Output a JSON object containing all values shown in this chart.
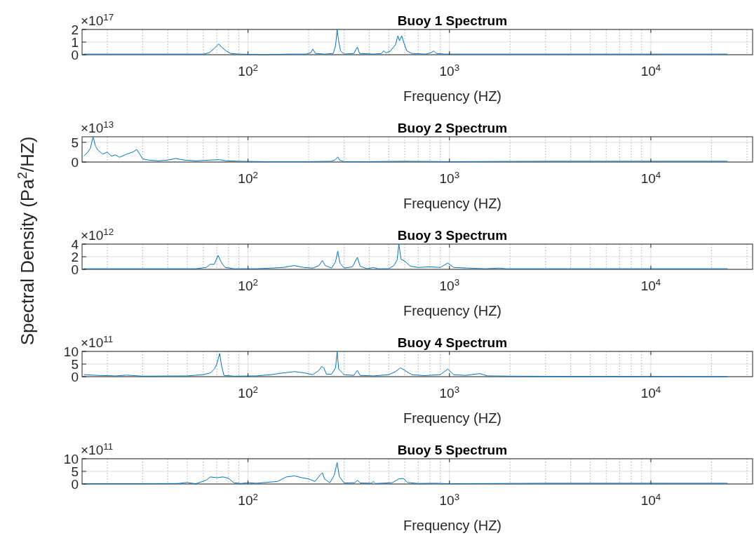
{
  "chart_data": [
    {
      "type": "line",
      "title": "Buoy 1 Spectrum",
      "xlabel": "Frequency (HZ)",
      "log": "x",
      "grid": true,
      "xlim": [
        15,
        32000
      ],
      "xticks": [
        {
          "value": 100,
          "label": "10$^{2}$"
        },
        {
          "value": 1000,
          "label": "10$^{3}$"
        },
        {
          "value": 10000,
          "label": "10$^{4}$"
        }
      ],
      "ylim": [
        0,
        2
      ],
      "yticks": [
        0,
        1,
        2
      ],
      "annotations": [
        "×10$^{17}$"
      ],
      "series": [
        {
          "color": "#0072bd",
          "x": [
            15.3,
            20,
            30,
            45,
            60,
            64,
            68,
            71.6,
            74,
            78,
            82,
            90,
            120,
            160,
            195,
            205,
            210,
            216,
            240,
            265,
            272,
            277,
            281,
            288,
            300,
            335,
            349,
            358,
            420,
            460,
            471,
            485,
            510,
            540,
            555,
            565,
            580,
            595,
            615,
            650,
            760,
            810,
            836,
            860,
            950,
            2000,
            5000,
            10000,
            24000
          ],
          "values": [
            0.05,
            0.05,
            0.05,
            0.05,
            0.05,
            0.15,
            0.5,
            0.85,
            0.6,
            0.3,
            0.1,
            0.05,
            0,
            0.05,
            0.05,
            0.15,
            0.45,
            0.1,
            0.05,
            0.1,
            0.7,
            2,
            1.2,
            0.3,
            0.05,
            0.1,
            0.6,
            0.1,
            0.05,
            0.1,
            0.3,
            0.15,
            0.3,
            0.8,
            1.5,
            1.1,
            1.5,
            0.9,
            0.3,
            0.1,
            0.05,
            0.15,
            0.3,
            0.1,
            0.05,
            0.05,
            0.05,
            0.05,
            0.05
          ]
        }
      ]
    },
    {
      "type": "line",
      "title": "Buoy 2 Spectrum",
      "xlabel": "Frequency (HZ)",
      "log": "x",
      "grid": true,
      "xlim": [
        15,
        32000
      ],
      "xticks": [
        {
          "value": 100,
          "label": "10$^{2}$"
        },
        {
          "value": 1000,
          "label": "10$^{3}$"
        },
        {
          "value": 10000,
          "label": "10$^{4}$"
        }
      ],
      "ylim": [
        0,
        6.4
      ],
      "yticks": [
        0,
        5
      ],
      "annotations": [
        "×10$^{13}$"
      ],
      "series": [
        {
          "color": "#0072bd",
          "x": [
            15.3,
            16,
            16.5,
            17,
            17.5,
            18,
            19,
            20,
            21,
            22,
            23,
            24,
            25,
            26,
            27,
            28,
            29,
            30,
            32,
            36,
            40,
            43.8,
            48,
            55,
            65,
            72,
            78,
            90,
            120,
            200,
            260,
            272,
            279,
            285,
            300,
            400,
            600,
            1000,
            3000,
            10000,
            24000
          ],
          "values": [
            1.5,
            2.5,
            3.5,
            6.4,
            4,
            3,
            2,
            2.5,
            1.5,
            1.8,
            1.2,
            1.6,
            2,
            2.3,
            2.6,
            3.2,
            2,
            0.8,
            0.5,
            0.3,
            0.5,
            0.9,
            0.5,
            0.3,
            0.5,
            0.6,
            0.3,
            0.2,
            0.1,
            0.1,
            0.2,
            0.6,
            1.3,
            0.5,
            0.1,
            0.1,
            0.2,
            0.1,
            0.2,
            0.2,
            0.2
          ]
        }
      ]
    },
    {
      "type": "line",
      "title": "Buoy 3 Spectrum",
      "xlabel": "Frequency (HZ)",
      "ylabel": "Spectral Density (Pa$^{2}$/HZ)",
      "log": "x",
      "grid": true,
      "xlim": [
        15,
        32000
      ],
      "xticks": [
        {
          "value": 100,
          "label": "10$^{2}$"
        },
        {
          "value": 1000,
          "label": "10$^{3}$"
        },
        {
          "value": 10000,
          "label": "10$^{4}$"
        }
      ],
      "ylim": [
        0,
        4
      ],
      "yticks": [
        0,
        2,
        4
      ],
      "annotations": [
        "×10$^{12}$"
      ],
      "series": [
        {
          "color": "#0072bd",
          "x": [
            15.3,
            30,
            55,
            62,
            65,
            68,
            71,
            74,
            77,
            85,
            110,
            130,
            150,
            169,
            190,
            210,
            225,
            234,
            242,
            260,
            272,
            279,
            286,
            300,
            330,
            349,
            360,
            390,
            420,
            440,
            500,
            530,
            550,
            561,
            575,
            600,
            640,
            700,
            800,
            900,
            982,
            1050,
            1250,
            1500,
            1770,
            1900,
            5000,
            24000
          ],
          "values": [
            0.1,
            0.1,
            0.1,
            0.3,
            0.8,
            0.8,
            2.2,
            1,
            0.3,
            0.1,
            0.1,
            0.2,
            0.3,
            0.6,
            0.3,
            0.2,
            0.6,
            1.4,
            0.6,
            0.2,
            1.2,
            2.9,
            1,
            0.2,
            0.4,
            1.9,
            0.5,
            0.1,
            0.3,
            0.1,
            0.1,
            0.6,
            1.5,
            4,
            1.6,
            1.3,
            0.5,
            0.3,
            0.4,
            0.3,
            1,
            0.3,
            0.2,
            0.1,
            0.2,
            0.1,
            0.1,
            0.1
          ]
        }
      ]
    },
    {
      "type": "line",
      "title": "Buoy 4 Spectrum",
      "xlabel": "Frequency (HZ)",
      "log": "x",
      "grid": true,
      "xlim": [
        15,
        32000
      ],
      "xticks": [
        {
          "value": 100,
          "label": "10$^{2}$"
        },
        {
          "value": 1000,
          "label": "10$^{3}$"
        },
        {
          "value": 10000,
          "label": "10$^{4}$"
        }
      ],
      "ylim": [
        0,
        10
      ],
      "yticks": [
        0,
        5,
        10
      ],
      "annotations": [
        "×10$^{11}$"
      ],
      "series": [
        {
          "color": "#0072bd",
          "x": [
            15.3,
            18,
            22,
            25,
            30,
            50,
            60,
            65,
            68,
            70,
            72.3,
            74,
            76,
            85,
            110,
            130,
            150,
            170,
            190,
            210,
            225,
            232,
            238,
            245,
            260,
            272,
            277,
            282,
            300,
            335,
            349,
            360,
            420,
            500,
            540,
            570,
            600,
            650,
            750,
            900,
            982,
            1050,
            1200,
            1413,
            1550,
            2000,
            5000,
            24000
          ],
          "values": [
            0.8,
            0.5,
            0.3,
            0.6,
            0.2,
            0.3,
            0.8,
            1.5,
            3,
            5,
            9.2,
            4,
            0.5,
            0.2,
            0.3,
            0.8,
            1.5,
            2,
            1.5,
            0.8,
            2.5,
            4,
            3.5,
            1,
            1,
            3.5,
            10,
            3,
            0.8,
            0.5,
            2.5,
            0.5,
            0.3,
            0.8,
            2,
            3.5,
            2.5,
            0.8,
            0.4,
            0.8,
            3,
            0.8,
            0.5,
            1.2,
            0.3,
            0.2,
            0.1,
            0
          ]
        }
      ]
    },
    {
      "type": "line",
      "title": "Buoy 5 Spectrum",
      "xlabel": "Frequency (HZ)",
      "log": "x",
      "grid": true,
      "xlim": [
        15,
        32000
      ],
      "xticks": [
        {
          "value": 100,
          "label": "10$^{2}$"
        },
        {
          "value": 1000,
          "label": "10$^{3}$"
        },
        {
          "value": 10000,
          "label": "10$^{4}$"
        }
      ],
      "ylim": [
        0,
        10
      ],
      "yticks": [
        0,
        5,
        10
      ],
      "annotations": [
        "×10$^{11}$"
      ],
      "series": [
        {
          "color": "#0072bd",
          "x": [
            15.3,
            30,
            45,
            49.7,
            55,
            62,
            65,
            70,
            75,
            80,
            85,
            92,
            100,
            110,
            140,
            155,
            170,
            185,
            200,
            215,
            228,
            234,
            240,
            255,
            268,
            277,
            284,
            300,
            340,
            349,
            360,
            410,
            420,
            430,
            520,
            560,
            590,
            620,
            700,
            850,
            1000,
            3000,
            10000,
            24000
          ],
          "values": [
            0.1,
            0.1,
            0.2,
            0.6,
            0.1,
            1.5,
            2.8,
            2.5,
            2.8,
            2.3,
            0.5,
            0.2,
            0.5,
            0.3,
            1,
            2.8,
            3.2,
            2.5,
            2,
            1,
            3.5,
            4.5,
            2,
            0.5,
            3.5,
            8.5,
            3,
            0.4,
            0.5,
            1.5,
            0.4,
            0.3,
            1,
            0.2,
            0.5,
            2,
            2.2,
            0.6,
            0.2,
            0.3,
            0.1,
            0.3,
            0.3,
            0.3
          ]
        }
      ]
    }
  ]
}
